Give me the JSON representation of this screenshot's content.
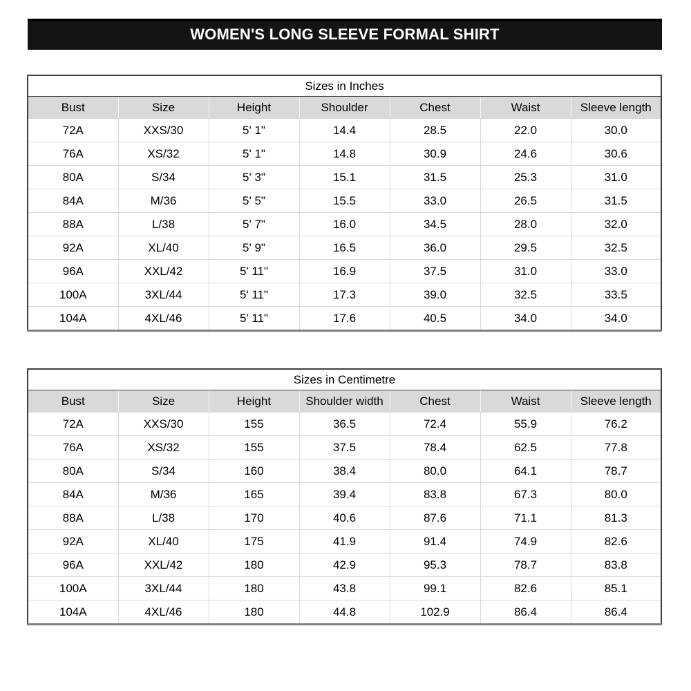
{
  "banner": {
    "title": "WOMEN'S LONG SLEEVE FORMAL SHIRT"
  },
  "colors": {
    "banner_bg": "#000000",
    "banner_text": "#ffffff",
    "header_bg": "#d9d9d9",
    "grid_line": "#d9d9d9",
    "outer_border": "#3f3f3f",
    "bottom_border": "#7f7f7f",
    "text_color": "#000000"
  },
  "tables": [
    {
      "title": "Sizes in Inches",
      "columns": [
        "Bust",
        "Size",
        "Height",
        "Shoulder",
        "Chest",
        "Waist",
        "Sleeve length"
      ],
      "rows": [
        [
          "72A",
          "XXS/30",
          "5' 1\"",
          "14.4",
          "28.5",
          "22.0",
          "30.0"
        ],
        [
          "76A",
          "XS/32",
          "5' 1\"",
          "14.8",
          "30.9",
          "24.6",
          "30.6"
        ],
        [
          "80A",
          "S/34",
          "5' 3\"",
          "15.1",
          "31.5",
          "25.3",
          "31.0"
        ],
        [
          "84A",
          "M/36",
          "5' 5\"",
          "15.5",
          "33.0",
          "26.5",
          "31.5"
        ],
        [
          "88A",
          "L/38",
          "5' 7\"",
          "16.0",
          "34.5",
          "28.0",
          "32.0"
        ],
        [
          "92A",
          "XL/40",
          "5' 9\"",
          "16.5",
          "36.0",
          "29.5",
          "32.5"
        ],
        [
          "96A",
          "XXL/42",
          "5' 11\"",
          "16.9",
          "37.5",
          "31.0",
          "33.0"
        ],
        [
          "100A",
          "3XL/44",
          "5' 11\"",
          "17.3",
          "39.0",
          "32.5",
          "33.5"
        ],
        [
          "104A",
          "4XL/46",
          "5' 11\"",
          "17.6",
          "40.5",
          "34.0",
          "34.0"
        ]
      ]
    },
    {
      "title": "Sizes in Centimetre",
      "columns": [
        "Bust",
        "Size",
        "Height",
        "Shoulder width",
        "Chest",
        "Waist",
        "Sleeve length"
      ],
      "rows": [
        [
          "72A",
          "XXS/30",
          "155",
          "36.5",
          "72.4",
          "55.9",
          "76.2"
        ],
        [
          "76A",
          "XS/32",
          "155",
          "37.5",
          "78.4",
          "62.5",
          "77.8"
        ],
        [
          "80A",
          "S/34",
          "160",
          "38.4",
          "80.0",
          "64.1",
          "78.7"
        ],
        [
          "84A",
          "M/36",
          "165",
          "39.4",
          "83.8",
          "67.3",
          "80.0"
        ],
        [
          "88A",
          "L/38",
          "170",
          "40.6",
          "87.6",
          "71.1",
          "81.3"
        ],
        [
          "92A",
          "XL/40",
          "175",
          "41.9",
          "91.4",
          "74.9",
          "82.6"
        ],
        [
          "96A",
          "XXL/42",
          "180",
          "42.9",
          "95.3",
          "78.7",
          "83.8"
        ],
        [
          "100A",
          "3XL/44",
          "180",
          "43.8",
          "99.1",
          "82.6",
          "85.1"
        ],
        [
          "104A",
          "4XL/46",
          "180",
          "44.8",
          "102.9",
          "86.4",
          "86.4"
        ]
      ]
    }
  ]
}
